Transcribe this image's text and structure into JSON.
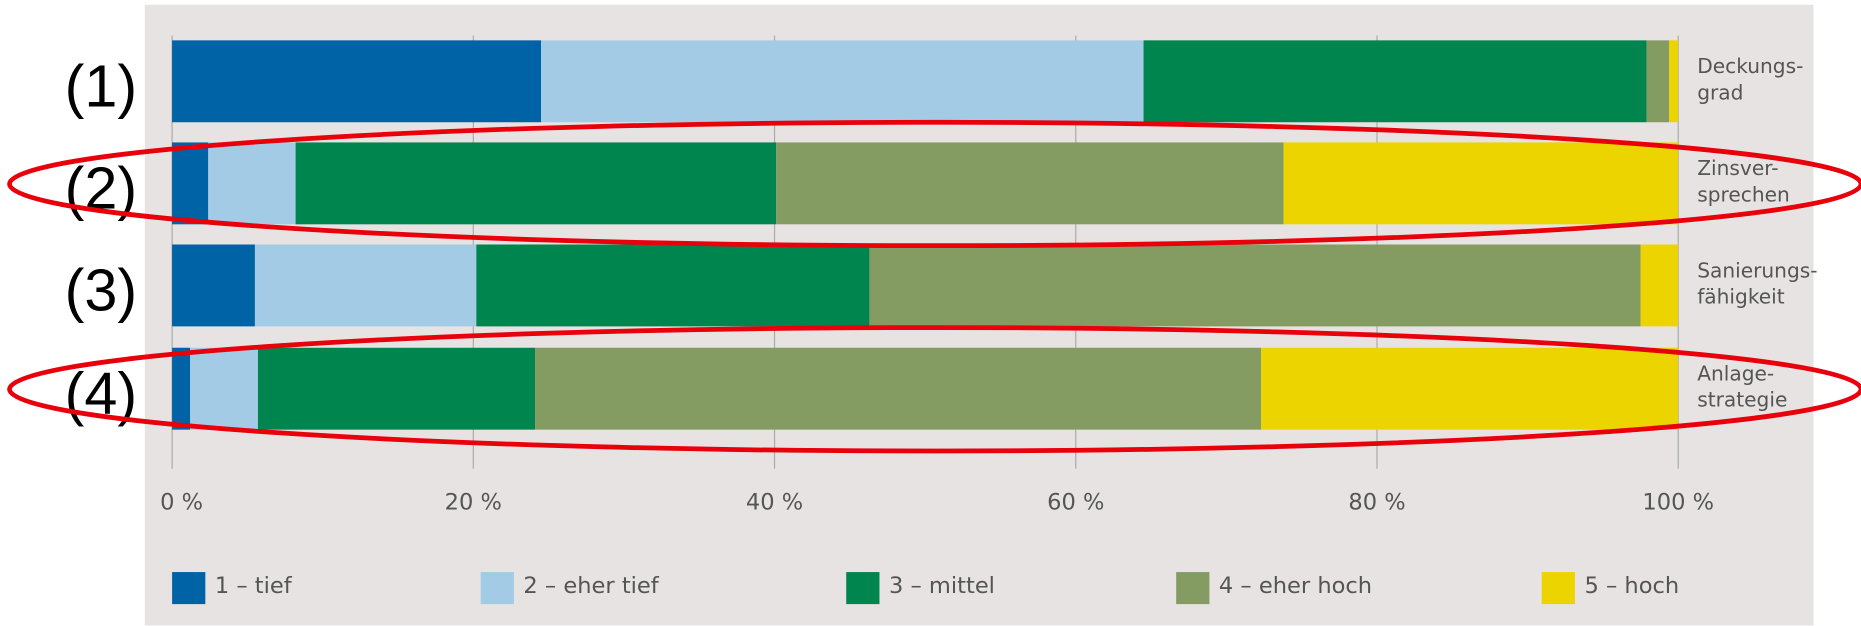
{
  "chart_data": {
    "type": "stacked_barh",
    "categories": [
      "(1)",
      "(2)",
      "(3)",
      "(4)"
    ],
    "bar_labels": [
      [
        "Deckungs-",
        "grad"
      ],
      [
        "Zinsver-",
        "sprechen"
      ],
      [
        "Sanierungs-",
        "fähigkeit"
      ],
      [
        "Anlage-",
        "strategie"
      ]
    ],
    "series": [
      {
        "name": "1 – tief",
        "color": "#0063a6",
        "values": [
          24.5,
          2.4,
          5.5,
          1.2
        ]
      },
      {
        "name": "2 – eher tief",
        "color": "#a3cbe5",
        "values": [
          40.0,
          5.8,
          14.7,
          4.5
        ]
      },
      {
        "name": "3 – mittel",
        "color": "#00854f",
        "values": [
          33.4,
          31.9,
          26.1,
          18.4
        ]
      },
      {
        "name": "4 – eher hoch",
        "color": "#849b62",
        "values": [
          1.5,
          33.7,
          51.2,
          48.2
        ]
      },
      {
        "name": "5 – hoch",
        "color": "#ecd400",
        "values": [
          0.6,
          26.2,
          2.5,
          27.7
        ]
      }
    ],
    "xlim": [
      0,
      100
    ],
    "xticks": [
      {
        "value": 0,
        "label": "0 %"
      },
      {
        "value": 20,
        "label": "20 %"
      },
      {
        "value": 40,
        "label": "40 %"
      },
      {
        "value": 60,
        "label": "60 %"
      },
      {
        "value": 80,
        "label": "80 %"
      },
      {
        "value": 100,
        "label": "100 %"
      }
    ],
    "grid": true,
    "legend": "bottom"
  }
}
